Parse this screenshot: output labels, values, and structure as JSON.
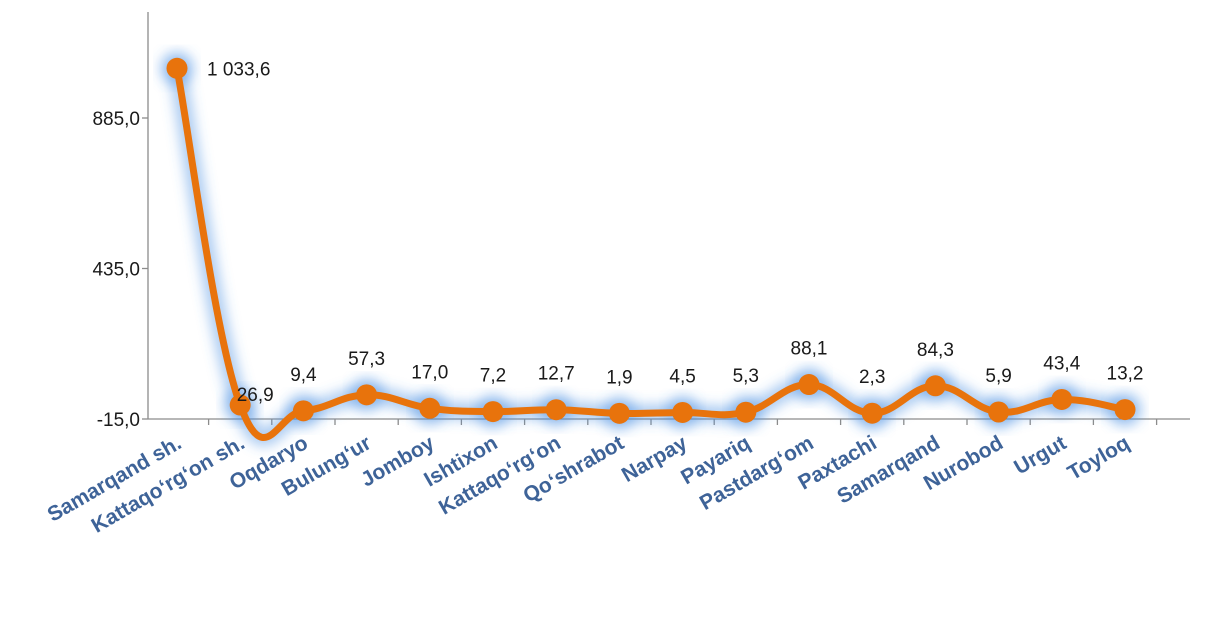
{
  "chart_data": {
    "type": "line",
    "categories": [
      "Samarqand sh.",
      "Kattaqo‘rg‘on  sh.",
      "Oqdaryo",
      "Bulung‘ur",
      "Jomboy",
      "Ishtixon",
      "Kattaqo‘rg‘on",
      "Qo‘shrabot",
      "Narpay",
      "Payariq",
      "Pastdarg‘om",
      "Paxtachi",
      "Samarqand",
      "Nurobod",
      "Urgut",
      "Toyloq"
    ],
    "values": [
      1033.6,
      26.9,
      9.4,
      57.3,
      17.0,
      7.2,
      12.7,
      1.9,
      4.5,
      5.3,
      88.1,
      2.3,
      84.3,
      5.9,
      43.4,
      13.2
    ],
    "value_labels": [
      "1 033,6",
      "26,9",
      "9,4",
      "57,3",
      "17,0",
      "7,2",
      "12,7",
      "1,9",
      "4,5",
      "5,3",
      "88,1",
      "2,3",
      "84,3",
      "5,9",
      "43,4",
      "13,2"
    ],
    "y_ticks": [
      -15.0,
      435.0,
      885.0
    ],
    "y_tick_labels": [
      "-15,0",
      "435,0",
      "885,0"
    ],
    "ylim": [
      -15.0,
      1200.0
    ],
    "grid": false,
    "legend": "none",
    "colors": {
      "line": "#e8730c",
      "glow": "#4a90e2",
      "category_text": "#3e6398",
      "axis": "#8c8c8c"
    }
  }
}
